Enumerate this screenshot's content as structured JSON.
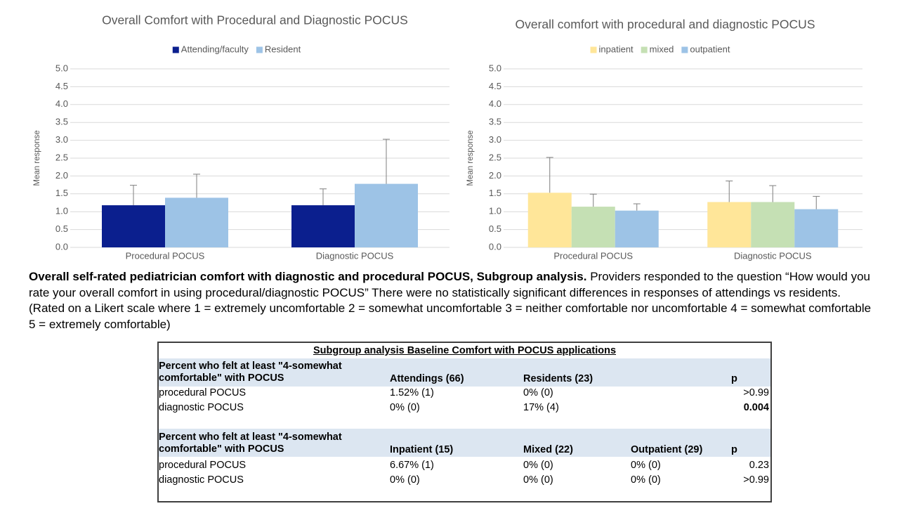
{
  "chart_data": [
    {
      "type": "bar",
      "title": "Overall Comfort with Procedural and Diagnostic POCUS",
      "y_label": "Mean response",
      "categories": [
        "Procedural POCUS",
        "Diagnostic POCUS"
      ],
      "series": [
        {
          "name": "Attending/faculty",
          "color": "#0b1f8e",
          "values": [
            1.18,
            1.18
          ],
          "errors": [
            0.56,
            0.46
          ]
        },
        {
          "name": "Resident",
          "color": "#9dc3e6",
          "values": [
            1.39,
            1.78
          ],
          "errors": [
            0.66,
            1.25
          ]
        }
      ],
      "ylim": [
        0,
        5
      ],
      "yticks": [
        {
          "value": 0,
          "label": "0.0"
        },
        {
          "value": 0.5,
          "label": "0.5"
        },
        {
          "value": 1,
          "label": "1.0"
        },
        {
          "value": 1.5,
          "label": "1.5"
        },
        {
          "value": 2,
          "label": "2.0"
        },
        {
          "value": 2.5,
          "label": "2.5"
        },
        {
          "value": 3,
          "label": "3.0"
        },
        {
          "value": 3.5,
          "label": "3.5"
        },
        {
          "value": 4,
          "label": "4.0"
        },
        {
          "value": 4.5,
          "label": "4.5"
        },
        {
          "value": 5,
          "label": "5.0"
        }
      ],
      "grid": true,
      "legend": "top"
    },
    {
      "type": "bar",
      "title": "Overall comfort with procedural and diagnostic POCUS",
      "y_label": "Mean response",
      "categories": [
        "Procedural POCUS",
        "Diagnostic POCUS"
      ],
      "series": [
        {
          "name": "inpatient",
          "color": "#ffe699",
          "values": [
            1.53,
            1.27
          ],
          "errors": [
            0.99,
            0.59
          ]
        },
        {
          "name": "mixed",
          "color": "#c5e0b4",
          "values": [
            1.14,
            1.27
          ],
          "errors": [
            0.35,
            0.46
          ]
        },
        {
          "name": "outpatient",
          "color": "#9dc3e6",
          "values": [
            1.03,
            1.07
          ],
          "errors": [
            0.19,
            0.36
          ]
        }
      ],
      "ylim": [
        0,
        5
      ],
      "yticks": [
        {
          "value": 0,
          "label": "0.0"
        },
        {
          "value": 0.5,
          "label": "0.5"
        },
        {
          "value": 1,
          "label": "1.0"
        },
        {
          "value": 1.5,
          "label": "1.5"
        },
        {
          "value": 2,
          "label": "2.0"
        },
        {
          "value": 2.5,
          "label": "2.5"
        },
        {
          "value": 3,
          "label": "3.0"
        },
        {
          "value": 3.5,
          "label": "3.5"
        },
        {
          "value": 4,
          "label": "4.0"
        },
        {
          "value": 4.5,
          "label": "4.5"
        },
        {
          "value": 5,
          "label": "5.0"
        }
      ],
      "grid": true,
      "legend": "top"
    }
  ],
  "caption": {
    "bold": "Overall self-rated pediatrician comfort with diagnostic and procedural POCUS, Subgroup analysis.",
    "text": "Providers responded to the question “How would you rate your overall comfort in using procedural/diagnostic POCUS” There were no statistically significant differences in responses of attendings vs residents. (Rated on a Likert scale where 1 = extremely uncomfortable 2 = somewhat uncomfortable 3 = neither comfortable nor uncomfortable  4 = somewhat comfortable 5 = extremely comfortable)"
  },
  "table": {
    "title": "Subgroup analysis Baseline Comfort with POCUS applications",
    "sections": [
      {
        "header": [
          "Percent who felt at least \"4-somewhat comfortable\" with POCUS",
          "Attendings (66)",
          "Residents (23)",
          "p"
        ],
        "rows": [
          [
            "procedural POCUS",
            "1.52% (1)",
            "0% (0)",
            ">0.99"
          ],
          [
            "diagnostic POCUS",
            "0% (0)",
            "17% (4)",
            "0.004"
          ]
        ]
      },
      {
        "header": [
          "Percent who felt at least \"4-somewhat comfortable\" with POCUS",
          "Inpatient (15)",
          "Mixed (22)",
          "Outpatient (29)",
          "p"
        ],
        "rows": [
          [
            "procedural POCUS",
            "6.67% (1)",
            "0% (0)",
            "0% (0)",
            "0.23"
          ],
          [
            "diagnostic POCUS",
            "0% (0)",
            "0% (0)",
            "0% (0)",
            ">0.99"
          ]
        ]
      }
    ]
  }
}
